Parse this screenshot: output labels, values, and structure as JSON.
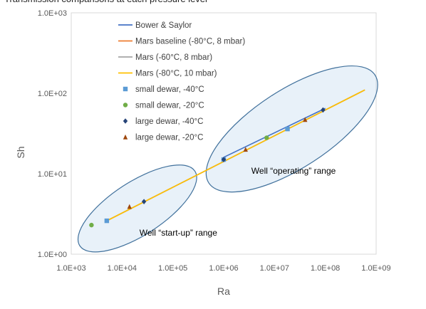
{
  "caption_top": "Transmission comparisons at each pressure level",
  "chart_data": {
    "type": "scatter",
    "title": "",
    "xlabel": "Ra",
    "ylabel": "Sh",
    "xscale": "log",
    "yscale": "log",
    "xlim": [
      1000,
      1000000000
    ],
    "ylim": [
      1,
      1000
    ],
    "x_tick_labels": [
      "1.0E+03",
      "1.0E+04",
      "1.0E+05",
      "1.0E+06",
      "1.0E+07",
      "1.0E+08",
      "1.0E+09"
    ],
    "y_tick_labels": [
      "1.0E+00",
      "1.0E+01",
      "1.0E+02",
      "1.0E+03"
    ],
    "grid": false,
    "legend_position": "top-left",
    "lines": [
      {
        "name": "Bower & Saylor",
        "color": "#4472c4",
        "x": [
          1000000,
          100000000
        ],
        "y": [
          16,
          65
        ]
      },
      {
        "name": "Mars baseline (-80°C, 8 mbar)",
        "color": "#ed7d31",
        "x": [
          5000,
          600000000
        ],
        "y": [
          2.6,
          110
        ]
      },
      {
        "name": "Mars (-60°C, 8 mbar)",
        "color": "#a5a5a5",
        "x": [
          5000,
          600000000
        ],
        "y": [
          2.6,
          110
        ]
      },
      {
        "name": "Mars (-80°C, 10 mbar)",
        "color": "#ffc000",
        "x": [
          5000,
          600000000
        ],
        "y": [
          2.6,
          110
        ]
      }
    ],
    "series": [
      {
        "name": "small dewar, -40°C",
        "marker": "square",
        "color": "#5b9bd5",
        "x": [
          5000,
          1000000,
          18000000
        ],
        "y": [
          2.6,
          15,
          36
        ]
      },
      {
        "name": "small dewar, -20°C",
        "marker": "circle",
        "color": "#70ad47",
        "x": [
          2500,
          7000000
        ],
        "y": [
          2.3,
          28
        ]
      },
      {
        "name": "large dewar, -40°C",
        "marker": "diamond",
        "color": "#264478",
        "x": [
          27000,
          1000000,
          90000000
        ],
        "y": [
          4.5,
          15,
          62
        ]
      },
      {
        "name": "large dewar, -20°C",
        "marker": "triangle",
        "color": "#9e480e",
        "x": [
          14000,
          2700000,
          40000000
        ],
        "y": [
          3.9,
          20,
          47
        ]
      }
    ],
    "annotations": [
      {
        "text": "Well “start-up” range",
        "x": 22000,
        "y": 1.7
      },
      {
        "text": "Well “operating” range",
        "x": 3500000,
        "y": 10
      }
    ],
    "ellipses": [
      {
        "label": "start-up",
        "cx": 20000,
        "cy": 3.7,
        "rx_decades": 1.35,
        "ry_decades": 0.15,
        "angle_deg": -33
      },
      {
        "label": "operating",
        "cx": 22000000,
        "cy": 36,
        "rx_decades": 1.95,
        "ry_decades": 0.22,
        "angle_deg": -33
      }
    ]
  }
}
